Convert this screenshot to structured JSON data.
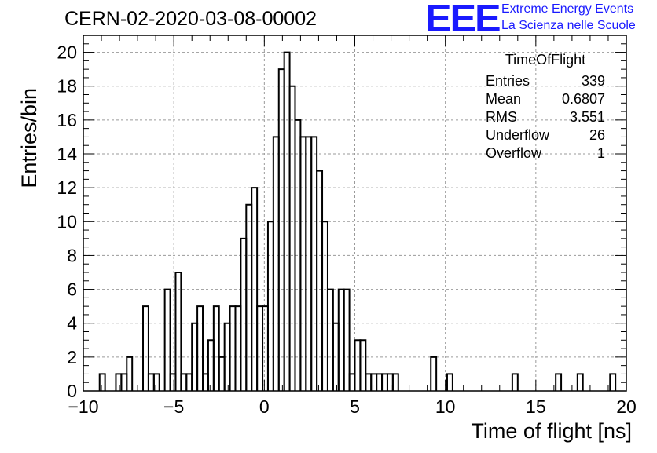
{
  "header": {
    "run_title": "CERN-02-2020-03-08-00002",
    "logo_text": "EEE",
    "logo_line1": "Extreme Energy Events",
    "logo_line2": "La Scienza nelle Scuole"
  },
  "stats_box": {
    "title": "TimeOfFlight",
    "rows": [
      {
        "key": "Entries",
        "value": "339"
      },
      {
        "key": "Mean",
        "value": "0.6807"
      },
      {
        "key": "RMS",
        "value": "3.551"
      },
      {
        "key": "Underflow",
        "value": "26"
      },
      {
        "key": "Overflow",
        "value": "1"
      }
    ]
  },
  "colors": {
    "logo": "#1a1aff",
    "line": "#000000",
    "grid": "#9a9a9a"
  },
  "chart_data": {
    "type": "bar",
    "histogram": "step",
    "xlabel": "Time of flight [ns]",
    "ylabel": "Entries/bin",
    "xlim": [
      -10,
      20
    ],
    "ylim": [
      0,
      21
    ],
    "bin_width": 0.3,
    "x_ticks": [
      -10,
      -5,
      0,
      5,
      10,
      15,
      20
    ],
    "y_ticks": [
      0,
      2,
      4,
      6,
      8,
      10,
      12,
      14,
      16,
      18,
      20
    ],
    "grid": true,
    "bins": [
      [
        -9.1,
        1
      ],
      [
        -8.2,
        1
      ],
      [
        -7.9,
        1
      ],
      [
        -7.6,
        2
      ],
      [
        -6.7,
        5
      ],
      [
        -6.4,
        1
      ],
      [
        -6.1,
        1
      ],
      [
        -5.5,
        6
      ],
      [
        -5.2,
        1
      ],
      [
        -4.9,
        7
      ],
      [
        -4.6,
        1
      ],
      [
        -4.3,
        1
      ],
      [
        -4.0,
        4
      ],
      [
        -3.7,
        5
      ],
      [
        -3.4,
        1
      ],
      [
        -3.1,
        3
      ],
      [
        -2.8,
        5
      ],
      [
        -2.5,
        2
      ],
      [
        -2.2,
        4
      ],
      [
        -1.9,
        5
      ],
      [
        -1.6,
        5
      ],
      [
        -1.3,
        9
      ],
      [
        -1.0,
        11
      ],
      [
        -0.7,
        12
      ],
      [
        -0.4,
        5
      ],
      [
        -0.1,
        5
      ],
      [
        0.2,
        10
      ],
      [
        0.5,
        15
      ],
      [
        0.8,
        19
      ],
      [
        1.1,
        20
      ],
      [
        1.4,
        18
      ],
      [
        1.7,
        16
      ],
      [
        2.0,
        15
      ],
      [
        2.3,
        15
      ],
      [
        2.6,
        15
      ],
      [
        2.9,
        13
      ],
      [
        3.2,
        10
      ],
      [
        3.5,
        6
      ],
      [
        3.8,
        4
      ],
      [
        4.1,
        6
      ],
      [
        4.4,
        6
      ],
      [
        4.7,
        1
      ],
      [
        5.0,
        3
      ],
      [
        5.3,
        3
      ],
      [
        5.6,
        1
      ],
      [
        5.9,
        1
      ],
      [
        6.2,
        1
      ],
      [
        6.5,
        1
      ],
      [
        6.8,
        1
      ],
      [
        7.1,
        1
      ],
      [
        9.2,
        2
      ],
      [
        10.1,
        1
      ],
      [
        13.7,
        1
      ],
      [
        16.1,
        1
      ],
      [
        17.3,
        1
      ],
      [
        19.1,
        1
      ]
    ]
  }
}
